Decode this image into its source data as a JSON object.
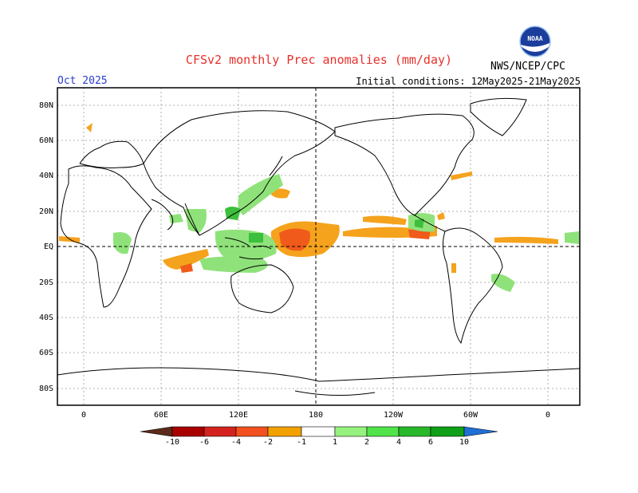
{
  "header": {
    "title": "CFSv2 monthly Prec anomalies (mm/day)",
    "month": "Oct 2025",
    "initial_conditions": "Initial conditions: 12May2025-21May2025",
    "agency": "NWS/NCEP/CPC"
  },
  "logo": {
    "name": "noaa-logo",
    "text": "NOAA"
  },
  "axes": {
    "lat_labels": [
      "80N",
      "60N",
      "40N",
      "20N",
      "EQ",
      "20S",
      "40S",
      "60S",
      "80S"
    ],
    "lon_labels": [
      "0",
      "60E",
      "120E",
      "180",
      "120W",
      "60W",
      "0"
    ]
  },
  "colorbar": {
    "labels": [
      "-10",
      "-6",
      "-4",
      "-2",
      "-1",
      "1",
      "2",
      "4",
      "6",
      "10"
    ],
    "colors": [
      "#5b2a18",
      "#a80000",
      "#d4231e",
      "#f2501e",
      "#f2a100",
      "#ffffff",
      "#96f27e",
      "#50e44a",
      "#28b829",
      "#10a018",
      "#1f6fd6"
    ]
  },
  "colors": {
    "title": "#e8302a",
    "month": "#2a3bd0",
    "dry_strong": "#f05a1a",
    "dry": "#f5a21c",
    "wet": "#8fe27a",
    "wet_strong": "#3cbf3a"
  }
}
